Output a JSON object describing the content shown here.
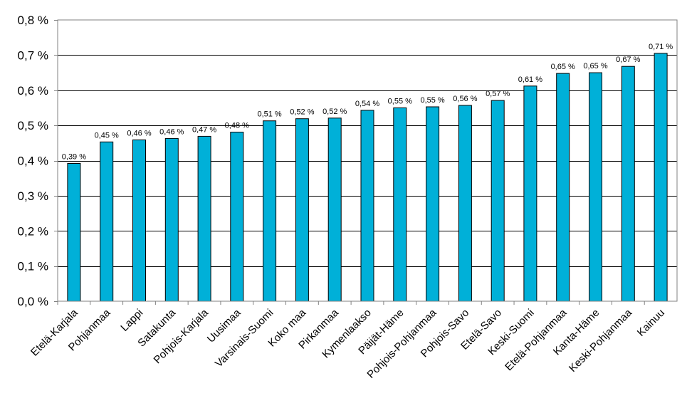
{
  "chart_data": {
    "type": "bar",
    "title": "",
    "xlabel": "",
    "ylabel": "",
    "ylim": [
      0,
      0.8
    ],
    "yticks": [
      0,
      0.1,
      0.2,
      0.3,
      0.4,
      0.5,
      0.6,
      0.7,
      0.8
    ],
    "ytick_labels": [
      "0,0 %",
      "0,1 %",
      "0,2 %",
      "0,3 %",
      "0,4 %",
      "0,5 %",
      "0,6 %",
      "0,7 %",
      "0,8 %"
    ],
    "grid": true,
    "legend": "none",
    "bar_color": "#00B0D8",
    "categories": [
      "Etelä-Karjala",
      "Pohjanmaa",
      "Lappi",
      "Satakunta",
      "Pohjois-Karjala",
      "Uusimaa",
      "Varsinais-Suomi",
      "Koko maa",
      "Pirkanmaa",
      "Kymenlaakso",
      "Päijät-Häme",
      "Pohjois-Pohjanmaa",
      "Pohjois-Savo",
      "Etelä-Savo",
      "Keski-Suomi",
      "Etelä-Pohjanmaa",
      "Kanta-Häme",
      "Keski-Pohjanmaa",
      "Kainuu"
    ],
    "values": [
      0.392,
      0.453,
      0.459,
      0.463,
      0.469,
      0.481,
      0.513,
      0.519,
      0.521,
      0.543,
      0.55,
      0.553,
      0.557,
      0.571,
      0.612,
      0.648,
      0.65,
      0.668,
      0.705
    ],
    "data_labels": [
      "0,39 %",
      "0,45 %",
      "0,46 %",
      "0,46 %",
      "0,47 %",
      "0,48 %",
      "0,51 %",
      "0,52 %",
      "0,52 %",
      "0,54 %",
      "0,55 %",
      "0,55 %",
      "0,56 %",
      "0,57 %",
      "0,61 %",
      "0,65 %",
      "0,65 %",
      "0,67 %",
      "0,71 %"
    ]
  }
}
